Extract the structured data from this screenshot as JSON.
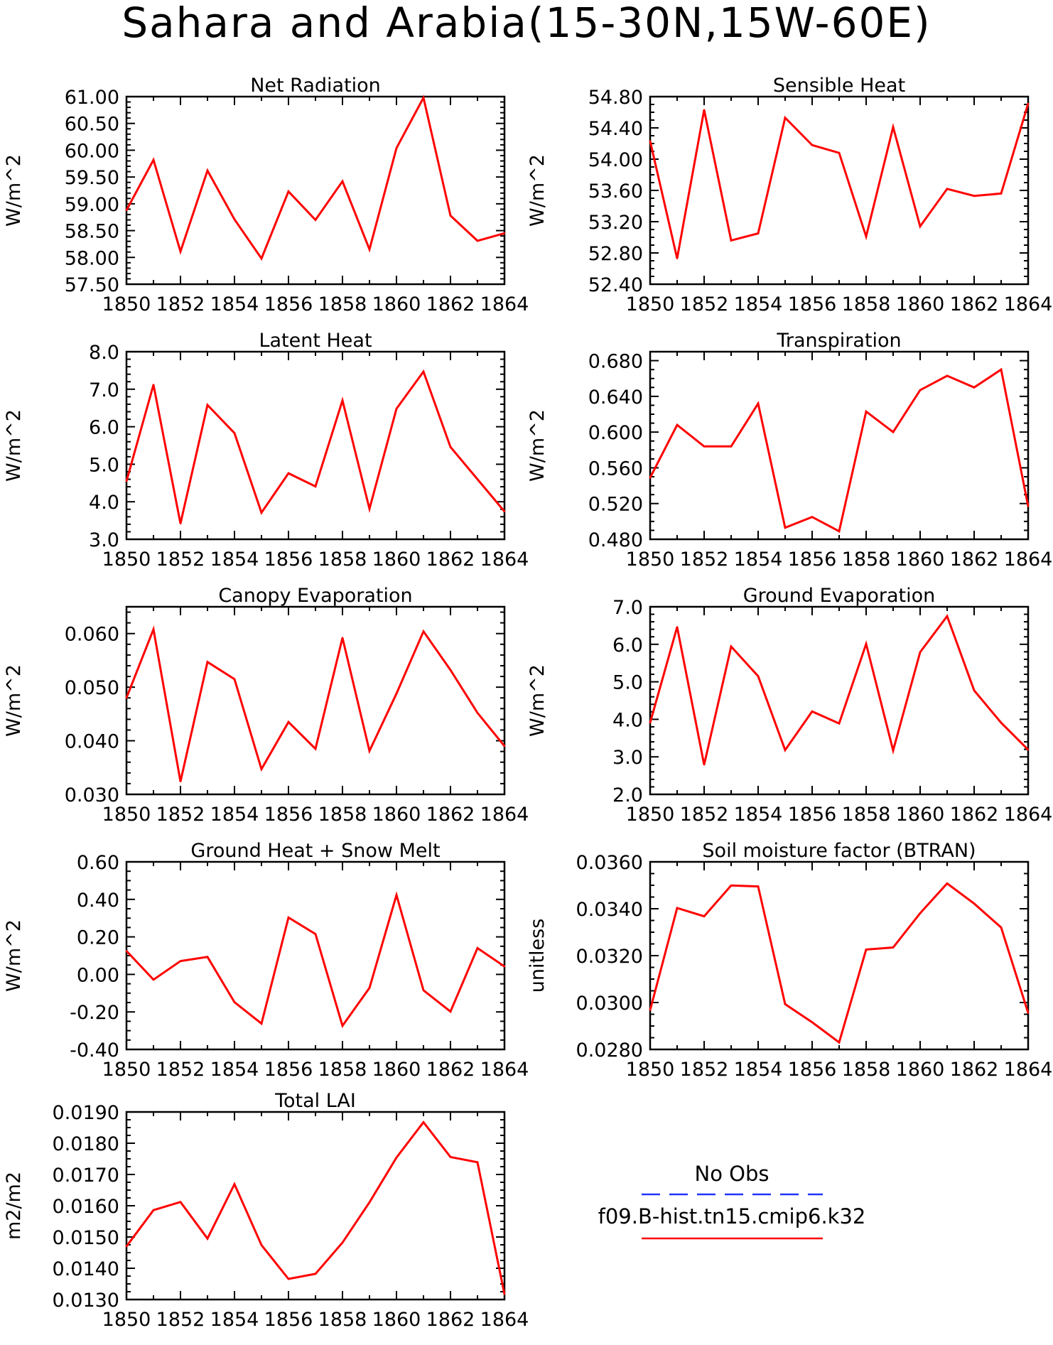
{
  "title": "Sahara and Arabia(15-30N,15W-60E)",
  "legend": [
    {
      "label": "No Obs",
      "color": "#0000ff",
      "dash": true
    },
    {
      "label": "f09.B-hist.tn15.cmip6.k32",
      "color": "#ff0000",
      "dash": false
    }
  ],
  "chart_data": [
    {
      "type": "line",
      "title": "Net Radiation",
      "ylabel": "W/m^2",
      "xlabel": "",
      "x": [
        1850,
        1851,
        1852,
        1853,
        1854,
        1855,
        1856,
        1857,
        1858,
        1859,
        1860,
        1861,
        1862,
        1863,
        1864
      ],
      "xticks": [
        "1850",
        "1852",
        "1854",
        "1856",
        "1858",
        "1860",
        "1862",
        "1864"
      ],
      "yticks": [
        "57.50",
        "58.00",
        "58.50",
        "59.00",
        "59.50",
        "60.00",
        "60.50",
        "61.00"
      ],
      "ylim": [
        57.5,
        61.0
      ],
      "ytick_step": 0.5,
      "minor_per_major": 5,
      "series": [
        {
          "name": "f09.B-hist.tn15.cmip6.k32",
          "color": "#ff0000",
          "values": [
            58.88,
            59.82,
            58.11,
            59.62,
            58.71,
            57.98,
            59.23,
            58.7,
            59.42,
            58.15,
            60.04,
            60.98,
            58.78,
            58.31,
            58.45
          ]
        }
      ],
      "grid": false
    },
    {
      "type": "line",
      "title": "Sensible Heat",
      "ylabel": "W/m^2",
      "xlabel": "",
      "x": [
        1850,
        1851,
        1852,
        1853,
        1854,
        1855,
        1856,
        1857,
        1858,
        1859,
        1860,
        1861,
        1862,
        1863,
        1864
      ],
      "xticks": [
        "1850",
        "1852",
        "1854",
        "1856",
        "1858",
        "1860",
        "1862",
        "1864"
      ],
      "yticks": [
        "52.40",
        "52.80",
        "53.20",
        "53.60",
        "54.00",
        "54.40",
        "54.80"
      ],
      "ylim": [
        52.4,
        54.8
      ],
      "ytick_step": 0.4,
      "minor_per_major": 4,
      "series": [
        {
          "name": "f09.B-hist.tn15.cmip6.k32",
          "color": "#ff0000",
          "values": [
            54.23,
            52.73,
            54.63,
            52.96,
            53.05,
            54.53,
            54.18,
            54.08,
            53.01,
            54.41,
            53.14,
            53.62,
            53.53,
            53.56,
            54.71
          ]
        }
      ],
      "grid": false
    },
    {
      "type": "line",
      "title": "Latent Heat",
      "ylabel": "W/m^2",
      "xlabel": "",
      "x": [
        1850,
        1851,
        1852,
        1853,
        1854,
        1855,
        1856,
        1857,
        1858,
        1859,
        1860,
        1861,
        1862,
        1863,
        1864
      ],
      "xticks": [
        "1850",
        "1852",
        "1854",
        "1856",
        "1858",
        "1860",
        "1862",
        "1864"
      ],
      "yticks": [
        "3.0",
        "4.0",
        "5.0",
        "6.0",
        "7.0",
        "8.0"
      ],
      "ylim": [
        3.0,
        8.0
      ],
      "ytick_step": 1.0,
      "minor_per_major": 5,
      "series": [
        {
          "name": "f09.B-hist.tn15.cmip6.k32",
          "color": "#ff0000",
          "values": [
            4.55,
            7.12,
            3.42,
            6.58,
            5.83,
            3.71,
            4.76,
            4.41,
            6.7,
            3.81,
            6.48,
            7.47,
            5.46,
            4.6,
            3.74
          ]
        }
      ],
      "grid": false
    },
    {
      "type": "line",
      "title": "Transpiration",
      "ylabel": "W/m^2",
      "xlabel": "",
      "x": [
        1850,
        1851,
        1852,
        1853,
        1854,
        1855,
        1856,
        1857,
        1858,
        1859,
        1860,
        1861,
        1862,
        1863,
        1864
      ],
      "xticks": [
        "1850",
        "1852",
        "1854",
        "1856",
        "1858",
        "1860",
        "1862",
        "1864"
      ],
      "yticks": [
        "0.480",
        "0.520",
        "0.560",
        "0.600",
        "0.640",
        "0.680"
      ],
      "ylim": [
        0.48,
        0.69
      ],
      "ytick_step": 0.04,
      "minor_per_major": 4,
      "series": [
        {
          "name": "f09.B-hist.tn15.cmip6.k32",
          "color": "#ff0000",
          "values": [
            0.549,
            0.608,
            0.584,
            0.584,
            0.632,
            0.493,
            0.505,
            0.489,
            0.623,
            0.6,
            0.647,
            0.663,
            0.65,
            0.67,
            0.517
          ]
        }
      ],
      "grid": false
    },
    {
      "type": "line",
      "title": "Canopy Evaporation",
      "ylabel": "W/m^2",
      "xlabel": "",
      "x": [
        1850,
        1851,
        1852,
        1853,
        1854,
        1855,
        1856,
        1857,
        1858,
        1859,
        1860,
        1861,
        1862,
        1863,
        1864
      ],
      "xticks": [
        "1850",
        "1852",
        "1854",
        "1856",
        "1858",
        "1860",
        "1862",
        "1864"
      ],
      "yticks": [
        "0.030",
        "0.040",
        "0.050",
        "0.060"
      ],
      "ylim": [
        0.03,
        0.065
      ],
      "ytick_step": 0.01,
      "minor_per_major": 5,
      "series": [
        {
          "name": "f09.B-hist.tn15.cmip6.k32",
          "color": "#ff0000",
          "values": [
            0.048,
            0.0608,
            0.0324,
            0.0547,
            0.0515,
            0.0347,
            0.0435,
            0.0385,
            0.0592,
            0.0381,
            0.0488,
            0.0604,
            0.0532,
            0.0452,
            0.039
          ]
        }
      ],
      "grid": false
    },
    {
      "type": "line",
      "title": "Ground Evaporation",
      "ylabel": "W/m^2",
      "xlabel": "",
      "x": [
        1850,
        1851,
        1852,
        1853,
        1854,
        1855,
        1856,
        1857,
        1858,
        1859,
        1860,
        1861,
        1862,
        1863,
        1864
      ],
      "xticks": [
        "1850",
        "1852",
        "1854",
        "1856",
        "1858",
        "1860",
        "1862",
        "1864"
      ],
      "yticks": [
        "2.0",
        "3.0",
        "4.0",
        "5.0",
        "6.0",
        "7.0"
      ],
      "ylim": [
        2.0,
        7.0
      ],
      "ytick_step": 1.0,
      "minor_per_major": 5,
      "series": [
        {
          "name": "f09.B-hist.tn15.cmip6.k32",
          "color": "#ff0000",
          "values": [
            3.91,
            6.46,
            2.79,
            5.94,
            5.15,
            3.18,
            4.21,
            3.89,
            6.01,
            3.17,
            5.79,
            6.75,
            4.77,
            3.91,
            3.19
          ]
        }
      ],
      "grid": false
    },
    {
      "type": "line",
      "title": "Ground Heat + Snow Melt",
      "ylabel": "W/m^2",
      "xlabel": "",
      "x": [
        1850,
        1851,
        1852,
        1853,
        1854,
        1855,
        1856,
        1857,
        1858,
        1859,
        1860,
        1861,
        1862,
        1863,
        1864
      ],
      "xticks": [
        "1850",
        "1852",
        "1854",
        "1856",
        "1858",
        "1860",
        "1862",
        "1864"
      ],
      "yticks": [
        "-0.40",
        "-0.20",
        "0.00",
        "0.20",
        "0.40",
        "0.60"
      ],
      "ylim": [
        -0.4,
        0.6
      ],
      "ytick_step": 0.2,
      "minor_per_major": 4,
      "series": [
        {
          "name": "f09.B-hist.tn15.cmip6.k32",
          "color": "#ff0000",
          "values": [
            0.125,
            -0.028,
            0.071,
            0.093,
            -0.148,
            -0.262,
            0.303,
            0.215,
            -0.274,
            -0.072,
            0.423,
            -0.085,
            -0.198,
            0.14,
            0.042
          ]
        }
      ],
      "grid": false
    },
    {
      "type": "line",
      "title": "Soil moisture factor (BTRAN)",
      "ylabel": "unitless",
      "xlabel": "",
      "x": [
        1850,
        1851,
        1852,
        1853,
        1854,
        1855,
        1856,
        1857,
        1858,
        1859,
        1860,
        1861,
        1862,
        1863,
        1864
      ],
      "xticks": [
        "1850",
        "1852",
        "1854",
        "1856",
        "1858",
        "1860",
        "1862",
        "1864"
      ],
      "yticks": [
        "0.0280",
        "0.0300",
        "0.0320",
        "0.0340",
        "0.0360"
      ],
      "ylim": [
        0.028,
        0.036
      ],
      "ytick_step": 0.002,
      "minor_per_major": 4,
      "series": [
        {
          "name": "f09.B-hist.tn15.cmip6.k32",
          "color": "#ff0000",
          "values": [
            0.02968,
            0.03403,
            0.03368,
            0.03499,
            0.03495,
            0.02993,
            0.02916,
            0.0283,
            0.03226,
            0.03235,
            0.03381,
            0.03508,
            0.03422,
            0.0332,
            0.02956
          ]
        }
      ],
      "grid": false
    },
    {
      "type": "line",
      "title": "Total LAI",
      "ylabel": "m2/m2",
      "xlabel": "",
      "x": [
        1850,
        1851,
        1852,
        1853,
        1854,
        1855,
        1856,
        1857,
        1858,
        1859,
        1860,
        1861,
        1862,
        1863,
        1864
      ],
      "xticks": [
        "1850",
        "1852",
        "1854",
        "1856",
        "1858",
        "1860",
        "1862",
        "1864"
      ],
      "yticks": [
        "0.0130",
        "0.0140",
        "0.0150",
        "0.0160",
        "0.0170",
        "0.0180",
        "0.0190"
      ],
      "ylim": [
        0.013,
        0.019
      ],
      "ytick_step": 0.001,
      "minor_per_major": 4,
      "series": [
        {
          "name": "f09.B-hist.tn15.cmip6.k32",
          "color": "#ff0000",
          "values": [
            0.0147,
            0.01586,
            0.01612,
            0.01495,
            0.01669,
            0.01474,
            0.01366,
            0.01382,
            0.01482,
            0.01611,
            0.01754,
            0.01867,
            0.01756,
            0.01739,
            0.01317
          ]
        }
      ],
      "grid": false
    }
  ]
}
